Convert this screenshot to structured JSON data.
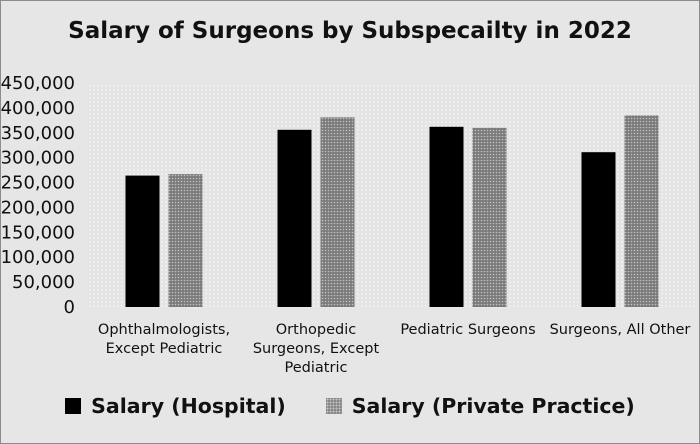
{
  "chart_data": {
    "type": "bar",
    "title": "Salary of Surgeons by Subspecailty in 2022",
    "categories": [
      [
        "Ophthalmologists,",
        "Except Pediatric"
      ],
      [
        "Orthopedic",
        "Surgeons, Except",
        "Pediatric"
      ],
      [
        "Pediatric Surgeons"
      ],
      [
        "Surgeons, All Other"
      ]
    ],
    "series": [
      {
        "name": "Salary (Hospital)",
        "values": [
          264000,
          356000,
          362000,
          311000
        ],
        "color": "#000000"
      },
      {
        "name": "Salary (Private Practice)",
        "values": [
          267000,
          381000,
          360000,
          385000
        ],
        "color": "#7d7d7d"
      }
    ],
    "ylim": [
      0,
      450000
    ],
    "yticks": [
      0,
      50000,
      100000,
      150000,
      200000,
      250000,
      300000,
      350000,
      400000,
      450000
    ],
    "ytick_labels": [
      "0",
      "50,000",
      "100,000",
      "150,000",
      "200,000",
      "250,000",
      "300,000",
      "350,000",
      "400,000",
      "450,000"
    ],
    "grid": false,
    "legend_position": "bottom",
    "xlabel": "",
    "ylabel": ""
  }
}
